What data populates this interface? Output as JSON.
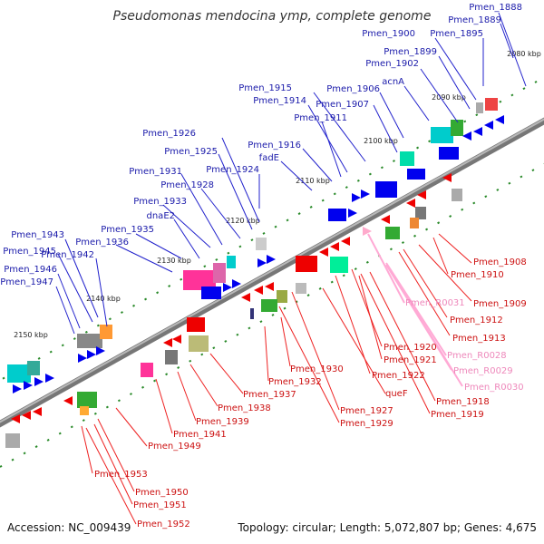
{
  "title": "Pseudomonas mendocina ymp, complete genome",
  "footer": {
    "accession": "Accession: NC_009439",
    "summary": "Topology: circular; Length: 5,072,807 bp; Genes: 4,675"
  },
  "colors": {
    "plus_label": "#1a1aaa",
    "minus_label": "#cc1111",
    "rna_label": "#ee88bb",
    "backbone": "#888888",
    "tick": "#2a8a2a"
  },
  "kbp_labels": [
    "2080 kbp",
    "2090 kbp",
    "2100 kbp",
    "2110 kbp",
    "2120 kbp",
    "2130 kbp",
    "2140 kbp",
    "2150 kbp"
  ],
  "plus_labels": [
    "Pmen_1888",
    "Pmen_1889",
    "Pmen_1895",
    "Pmen_1900",
    "Pmen_1899",
    "Pmen_1902",
    "acnA",
    "Pmen_1906",
    "Pmen_1907",
    "Pmen_1915",
    "Pmen_1914",
    "Pmen_1911",
    "Pmen_1916",
    "fadE",
    "Pmen_1926",
    "Pmen_1925",
    "Pmen_1924",
    "Pmen_1931",
    "Pmen_1928",
    "Pmen_1933",
    "dnaE2",
    "Pmen_1935",
    "Pmen_1943",
    "Pmen_1936",
    "Pmen_1945",
    "Pmen_1942",
    "Pmen_1946",
    "Pmen_1947"
  ],
  "minus_labels": [
    "Pmen_1908",
    "Pmen_1910",
    "Pmen_1909",
    "Pmen_1912",
    "Pmen_1913",
    "Pmen_1920",
    "Pmen_1921",
    "Pmen_1922",
    "Pmen_1930",
    "Pmen_1932",
    "Pmen_1937",
    "Pmen_1938",
    "queF",
    "Pmen_1918",
    "Pmen_1919",
    "Pmen_1927",
    "Pmen_1929",
    "Pmen_1939",
    "Pmen_1941",
    "Pmen_1949",
    "Pmen_1953",
    "Pmen_1950",
    "Pmen_1951",
    "Pmen_1952"
  ],
  "rna_labels": [
    "Pmen_R0031",
    "Pmen_R0028",
    "Pmen_R0029",
    "Pmen_R0030"
  ]
}
